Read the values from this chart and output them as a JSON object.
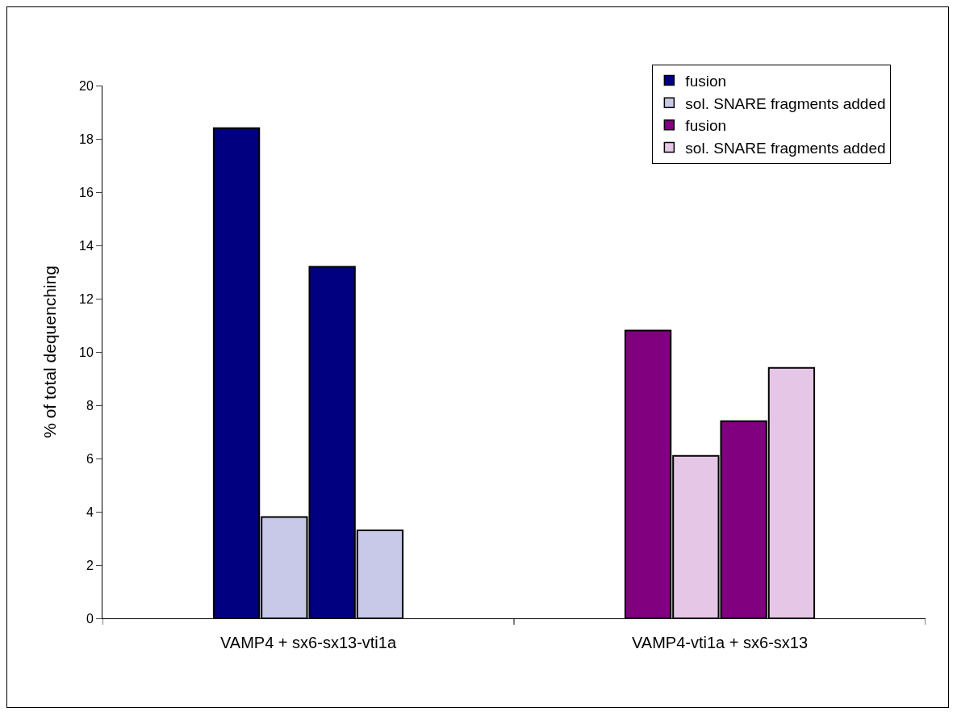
{
  "chart_data": {
    "type": "bar",
    "ylabel": "% of total dequenching",
    "categories": [
      "VAMP4 + sx6-sx13-vti1a",
      "VAMP4-vti1a + sx6-sx13"
    ],
    "series": [
      {
        "name": "fusion",
        "color": "#000080",
        "colors": [
          "#000080",
          "#800080"
        ],
        "values": [
          18.4,
          10.8
        ]
      },
      {
        "name": "sol. SNARE fragments added",
        "color": "#c8c8e8",
        "colors": [
          "#c8c8e8",
          "#e6c6e6"
        ],
        "values": [
          3.8,
          6.1
        ]
      },
      {
        "name": "fusion",
        "color": "#800080",
        "colors": [
          "#000080",
          "#800080"
        ],
        "values": [
          13.2,
          7.4
        ]
      },
      {
        "name": "sol. SNARE fragments added",
        "color": "#e6c6e6",
        "colors": [
          "#c8c8e8",
          "#e6c6e6"
        ],
        "values": [
          3.3,
          9.4
        ]
      }
    ],
    "ylim": [
      0,
      20
    ],
    "yticks": [
      0,
      2,
      4,
      6,
      8,
      10,
      12,
      14,
      16,
      18,
      20
    ],
    "grid": false,
    "legend": "top right"
  }
}
